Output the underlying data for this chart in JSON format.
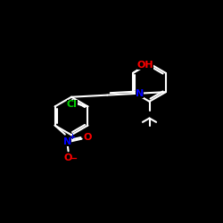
{
  "bg_color": "#000000",
  "bond_color": "#ffffff",
  "atom_colors": {
    "N": "#0000ff",
    "O": "#ff0000",
    "Cl": "#00cc00",
    "C": "#ffffff",
    "H": "#ffffff"
  },
  "bond_width": 1.5,
  "dpi": 100,
  "figsize": [
    2.5,
    2.5
  ],
  "xlim": [
    0,
    10
  ],
  "ylim": [
    0,
    10
  ]
}
